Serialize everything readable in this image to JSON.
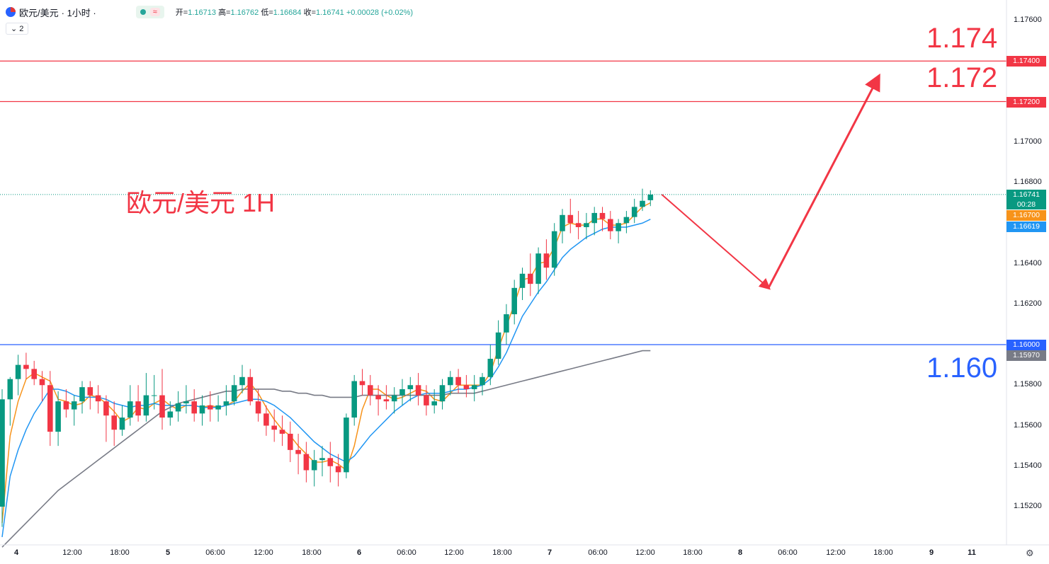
{
  "header": {
    "symbol": "欧元/美元",
    "interval": "· 1小时 ·",
    "pill_wave": "≈",
    "open_label": "开=",
    "open": "1.16713",
    "high_label": "高=",
    "high": "1.16762",
    "low_label": "低=",
    "low": "1.16684",
    "close_label": "收=",
    "close": "1.16741",
    "change": "+0.00028 (+0.02%)",
    "indicator_count": "2"
  },
  "annotations": {
    "title": "欧元/美元 1H",
    "level_1174": "1.174",
    "level_1172": "1.172",
    "level_1160": "1.160"
  },
  "price_tags": {
    "last": "1.16741",
    "countdown": "00:28",
    "ma_fast": "1.16700",
    "ma_mid": "1.16619",
    "ma_slow": "1.15970",
    "line_1174": "1.17400",
    "line_1172": "1.17200",
    "line_1160": "1.16000"
  },
  "axis": {
    "y_labels": [
      "1.17600",
      "1.17000",
      "1.16800",
      "1.16400",
      "1.16200",
      "1.15800",
      "1.15600",
      "1.15400",
      "1.15200"
    ],
    "x_labels": [
      "4",
      "12:00",
      "18:00",
      "5",
      "06:00",
      "12:00",
      "18:00",
      "6",
      "06:00",
      "12:00",
      "18:00",
      "7",
      "06:00",
      "12:00",
      "18:00",
      "8",
      "06:00",
      "12:00",
      "18:00",
      "9",
      "11"
    ],
    "gear_icon": "⚙"
  },
  "colors": {
    "up": "#089981",
    "down": "#f23645",
    "ma_fast": "#f7931a",
    "ma_mid": "#2196f3",
    "ma_slow": "#787b86",
    "resistance": "#f23645",
    "support": "#2962ff"
  },
  "chart_data": {
    "type": "candlestick",
    "symbol": "欧元/美元",
    "interval": "1H",
    "x_ticks": [
      "4",
      "12:00",
      "18:00",
      "5",
      "06:00",
      "12:00",
      "18:00",
      "6",
      "06:00",
      "12:00",
      "18:00",
      "7",
      "06:00",
      "12:00",
      "18:00",
      "8",
      "06:00",
      "12:00",
      "18:00",
      "9",
      "11"
    ],
    "y_range": [
      1.1508,
      1.1766
    ],
    "horizontal_lines": [
      1.174,
      1.172,
      1.16
    ],
    "last_price": 1.16741,
    "ohlc": [
      [
        1.152,
        1.1578,
        1.151,
        1.1573
      ],
      [
        1.1573,
        1.1584,
        1.156,
        1.1583
      ],
      [
        1.1583,
        1.1595,
        1.1575,
        1.159
      ],
      [
        1.159,
        1.1596,
        1.1583,
        1.1588
      ],
      [
        1.1588,
        1.1592,
        1.158,
        1.1583
      ],
      [
        1.1583,
        1.1587,
        1.1572,
        1.158
      ],
      [
        1.158,
        1.1587,
        1.155,
        1.1557
      ],
      [
        1.1557,
        1.1577,
        1.155,
        1.1572
      ],
      [
        1.1572,
        1.1578,
        1.1564,
        1.1568
      ],
      [
        1.1568,
        1.1575,
        1.156,
        1.1572
      ],
      [
        1.1572,
        1.1582,
        1.1566,
        1.1579
      ],
      [
        1.1579,
        1.1582,
        1.1568,
        1.1575
      ],
      [
        1.1575,
        1.158,
        1.1566,
        1.1572
      ],
      [
        1.1572,
        1.1575,
        1.1552,
        1.1565
      ],
      [
        1.1565,
        1.1572,
        1.155,
        1.1558
      ],
      [
        1.1558,
        1.157,
        1.1555,
        1.1564
      ],
      [
        1.1564,
        1.158,
        1.156,
        1.1572
      ],
      [
        1.1572,
        1.158,
        1.1562,
        1.1565
      ],
      [
        1.1565,
        1.1586,
        1.1562,
        1.1575
      ],
      [
        1.1575,
        1.1585,
        1.1568,
        1.1575
      ],
      [
        1.1575,
        1.1588,
        1.1558,
        1.1564
      ],
      [
        1.1564,
        1.1572,
        1.156,
        1.1567
      ],
      [
        1.1567,
        1.1577,
        1.1562,
        1.1571
      ],
      [
        1.1571,
        1.158,
        1.1566,
        1.1572
      ],
      [
        1.1572,
        1.1578,
        1.1562,
        1.1566
      ],
      [
        1.1566,
        1.1575,
        1.156,
        1.157
      ],
      [
        1.157,
        1.1577,
        1.1562,
        1.1568
      ],
      [
        1.1568,
        1.1575,
        1.1562,
        1.157
      ],
      [
        1.157,
        1.158,
        1.1565,
        1.1572
      ],
      [
        1.1572,
        1.1585,
        1.157,
        1.158
      ],
      [
        1.158,
        1.159,
        1.1576,
        1.1584
      ],
      [
        1.1584,
        1.1588,
        1.157,
        1.1572
      ],
      [
        1.1572,
        1.1578,
        1.1562,
        1.1566
      ],
      [
        1.1566,
        1.157,
        1.1555,
        1.156
      ],
      [
        1.156,
        1.1568,
        1.1552,
        1.1558
      ],
      [
        1.1558,
        1.1565,
        1.155,
        1.1556
      ],
      [
        1.1556,
        1.1562,
        1.1542,
        1.1548
      ],
      [
        1.1548,
        1.1556,
        1.1536,
        1.1546
      ],
      [
        1.1546,
        1.1552,
        1.1532,
        1.1538
      ],
      [
        1.1538,
        1.1548,
        1.153,
        1.1543
      ],
      [
        1.1543,
        1.155,
        1.1535,
        1.1544
      ],
      [
        1.1544,
        1.1552,
        1.1532,
        1.154
      ],
      [
        1.154,
        1.1546,
        1.153,
        1.1537
      ],
      [
        1.1537,
        1.1566,
        1.1534,
        1.1564
      ],
      [
        1.1564,
        1.1585,
        1.156,
        1.1582
      ],
      [
        1.1582,
        1.1588,
        1.1575,
        1.158
      ],
      [
        1.158,
        1.1585,
        1.157,
        1.1575
      ],
      [
        1.1575,
        1.158,
        1.1565,
        1.1573
      ],
      [
        1.1573,
        1.158,
        1.1568,
        1.1572
      ],
      [
        1.1572,
        1.1579,
        1.1566,
        1.1575
      ],
      [
        1.1575,
        1.1583,
        1.157,
        1.1578
      ],
      [
        1.1578,
        1.1584,
        1.1572,
        1.158
      ],
      [
        1.158,
        1.1586,
        1.157,
        1.1575
      ],
      [
        1.1575,
        1.158,
        1.1565,
        1.157
      ],
      [
        1.157,
        1.1578,
        1.1566,
        1.1572
      ],
      [
        1.1572,
        1.1583,
        1.1568,
        1.158
      ],
      [
        1.158,
        1.1587,
        1.1575,
        1.1584
      ],
      [
        1.1584,
        1.1588,
        1.1576,
        1.158
      ],
      [
        1.158,
        1.1585,
        1.1574,
        1.1578
      ],
      [
        1.1578,
        1.1585,
        1.1572,
        1.158
      ],
      [
        1.158,
        1.1586,
        1.1575,
        1.1584
      ],
      [
        1.1584,
        1.16,
        1.158,
        1.1593
      ],
      [
        1.1593,
        1.1612,
        1.159,
        1.1606
      ],
      [
        1.1606,
        1.162,
        1.16,
        1.1615
      ],
      [
        1.1615,
        1.1632,
        1.161,
        1.1628
      ],
      [
        1.1628,
        1.1638,
        1.1622,
        1.1635
      ],
      [
        1.1635,
        1.1645,
        1.1624,
        1.163
      ],
      [
        1.163,
        1.1648,
        1.1625,
        1.1645
      ],
      [
        1.1645,
        1.1652,
        1.1632,
        1.1638
      ],
      [
        1.1638,
        1.166,
        1.1634,
        1.1656
      ],
      [
        1.1656,
        1.1667,
        1.165,
        1.1664
      ],
      [
        1.1664,
        1.1672,
        1.1655,
        1.166
      ],
      [
        1.166,
        1.1666,
        1.1652,
        1.1658
      ],
      [
        1.1658,
        1.1665,
        1.1652,
        1.166
      ],
      [
        1.166,
        1.1668,
        1.1654,
        1.1665
      ],
      [
        1.1665,
        1.1668,
        1.1656,
        1.1662
      ],
      [
        1.1662,
        1.1666,
        1.1652,
        1.1656
      ],
      [
        1.1656,
        1.1662,
        1.165,
        1.166
      ],
      [
        1.166,
        1.1666,
        1.1655,
        1.1663
      ],
      [
        1.1663,
        1.1672,
        1.166,
        1.1668
      ],
      [
        1.1668,
        1.1677,
        1.1666,
        1.1671
      ],
      [
        1.16713,
        1.16762,
        1.16684,
        1.16741
      ]
    ],
    "series": [
      {
        "name": "",
        "color": "#f7931a",
        "values": [
          1.1512,
          1.1555,
          1.1572,
          1.1583,
          1.1586,
          1.1584,
          1.1582,
          1.1573,
          1.1572,
          1.157,
          1.1571,
          1.1575,
          1.1574,
          1.1571,
          1.1567,
          1.1562,
          1.1564,
          1.1569,
          1.1568,
          1.1571,
          1.1573,
          1.157,
          1.1568,
          1.157,
          1.157,
          1.1569,
          1.157,
          1.1569,
          1.157,
          1.1572,
          1.1577,
          1.1581,
          1.1576,
          1.1569,
          1.1563,
          1.1558,
          1.1555,
          1.155,
          1.1546,
          1.1542,
          1.1542,
          1.1543,
          1.1541,
          1.1538,
          1.155,
          1.1568,
          1.1578,
          1.1578,
          1.1575,
          1.1573,
          1.1574,
          1.1576,
          1.1578,
          1.1577,
          1.1573,
          1.1572,
          1.1576,
          1.158,
          1.158,
          1.158,
          1.158,
          1.1586,
          1.1598,
          1.1609,
          1.162,
          1.1632,
          1.1633,
          1.164,
          1.1641,
          1.1648,
          1.1658,
          1.166,
          1.1659,
          1.1659,
          1.1662,
          1.1662,
          1.1659,
          1.1659,
          1.166,
          1.1664,
          1.1668,
          1.167
        ]
      },
      {
        "name": "",
        "color": "#2196f3",
        "values": [
          1.1505,
          1.1535,
          1.1548,
          1.1558,
          1.1566,
          1.1572,
          1.1578,
          1.1578,
          1.1577,
          1.1575,
          1.1574,
          1.1574,
          1.1574,
          1.1573,
          1.1571,
          1.157,
          1.1569,
          1.157,
          1.157,
          1.1571,
          1.157,
          1.157,
          1.157,
          1.157,
          1.157,
          1.1569,
          1.1569,
          1.1569,
          1.157,
          1.1571,
          1.1572,
          1.1573,
          1.1573,
          1.1572,
          1.157,
          1.1567,
          1.1564,
          1.156,
          1.1556,
          1.1552,
          1.1549,
          1.1546,
          1.1544,
          1.1542,
          1.1545,
          1.155,
          1.1555,
          1.1559,
          1.1563,
          1.1567,
          1.157,
          1.1573,
          1.1575,
          1.1576,
          1.1576,
          1.1576,
          1.1577,
          1.1578,
          1.1578,
          1.1579,
          1.158,
          1.1583,
          1.1589,
          1.1596,
          1.1605,
          1.1614,
          1.162,
          1.1626,
          1.1631,
          1.1637,
          1.1643,
          1.1647,
          1.165,
          1.1653,
          1.1655,
          1.1657,
          1.1658,
          1.1658,
          1.1658,
          1.1659,
          1.166,
          1.16619
        ]
      },
      {
        "name": "",
        "color": "#787b86",
        "values": [
          1.15,
          1.1504,
          1.1508,
          1.1512,
          1.1516,
          1.152,
          1.1524,
          1.1528,
          1.1531,
          1.1534,
          1.1537,
          1.154,
          1.1543,
          1.1546,
          1.1549,
          1.1552,
          1.1555,
          1.1558,
          1.1561,
          1.1564,
          1.1567,
          1.1569,
          1.1571,
          1.1572,
          1.1573,
          1.1574,
          1.1575,
          1.1576,
          1.1577,
          1.1577,
          1.1578,
          1.1578,
          1.1578,
          1.1578,
          1.1578,
          1.1577,
          1.1577,
          1.1576,
          1.1576,
          1.1575,
          1.1575,
          1.1574,
          1.1574,
          1.1574,
          1.1574,
          1.1575,
          1.1575,
          1.1575,
          1.1575,
          1.1575,
          1.1575,
          1.1575,
          1.1575,
          1.1575,
          1.1575,
          1.1575,
          1.1576,
          1.1576,
          1.1576,
          1.1576,
          1.1577,
          1.1578,
          1.1579,
          1.158,
          1.1581,
          1.1582,
          1.1583,
          1.1584,
          1.1585,
          1.1586,
          1.1587,
          1.1588,
          1.1589,
          1.159,
          1.1591,
          1.1592,
          1.1593,
          1.1594,
          1.1595,
          1.1596,
          1.1597,
          1.1597
        ]
      }
    ],
    "projection": [
      [
        1.16741,
        1.1628
      ],
      [
        1.1628,
        1.1732
      ]
    ]
  }
}
